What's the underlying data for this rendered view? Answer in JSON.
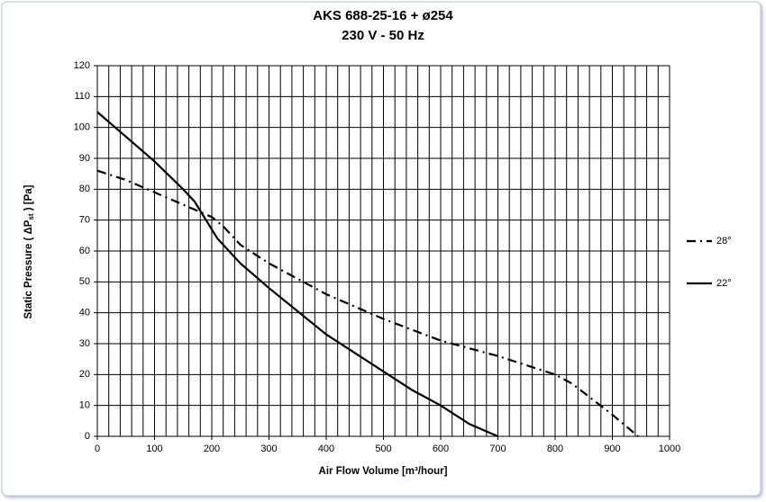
{
  "chart_data": {
    "type": "line",
    "title": "AKS 688-25-16  +  ø254",
    "subtitle": "230 V - 50 Hz",
    "xlabel": "Air Flow Volume [m³/hour]",
    "ylabel_parts": [
      "Static Pressure ( ΔP",
      "st",
      " ) [Pa]"
    ],
    "xlim": [
      0,
      1000
    ],
    "ylim": [
      0,
      120
    ],
    "xticks": [
      0,
      100,
      200,
      300,
      400,
      500,
      600,
      700,
      800,
      900,
      1000
    ],
    "yticks": [
      0,
      10,
      20,
      30,
      40,
      50,
      60,
      70,
      80,
      90,
      100,
      110,
      120
    ],
    "grid": true,
    "legend": "right",
    "series": [
      {
        "name": "28°",
        "color": "#000000",
        "dash": "dash-dot",
        "x": [
          0,
          50,
          100,
          150,
          200,
          220,
          250,
          300,
          400,
          500,
          600,
          700,
          800,
          830,
          900,
          945
        ],
        "values": [
          86,
          83,
          79,
          75,
          71,
          68,
          62,
          56,
          46,
          38,
          31,
          26,
          20,
          17,
          7,
          0
        ]
      },
      {
        "name": "22°",
        "color": "#000000",
        "dash": "solid",
        "x": [
          0,
          50,
          100,
          150,
          170,
          190,
          210,
          250,
          300,
          400,
          500,
          550,
          600,
          650,
          700
        ],
        "values": [
          105,
          97,
          89,
          80,
          76,
          70,
          64,
          56,
          48,
          33,
          21,
          15,
          10,
          4,
          0
        ]
      }
    ]
  }
}
